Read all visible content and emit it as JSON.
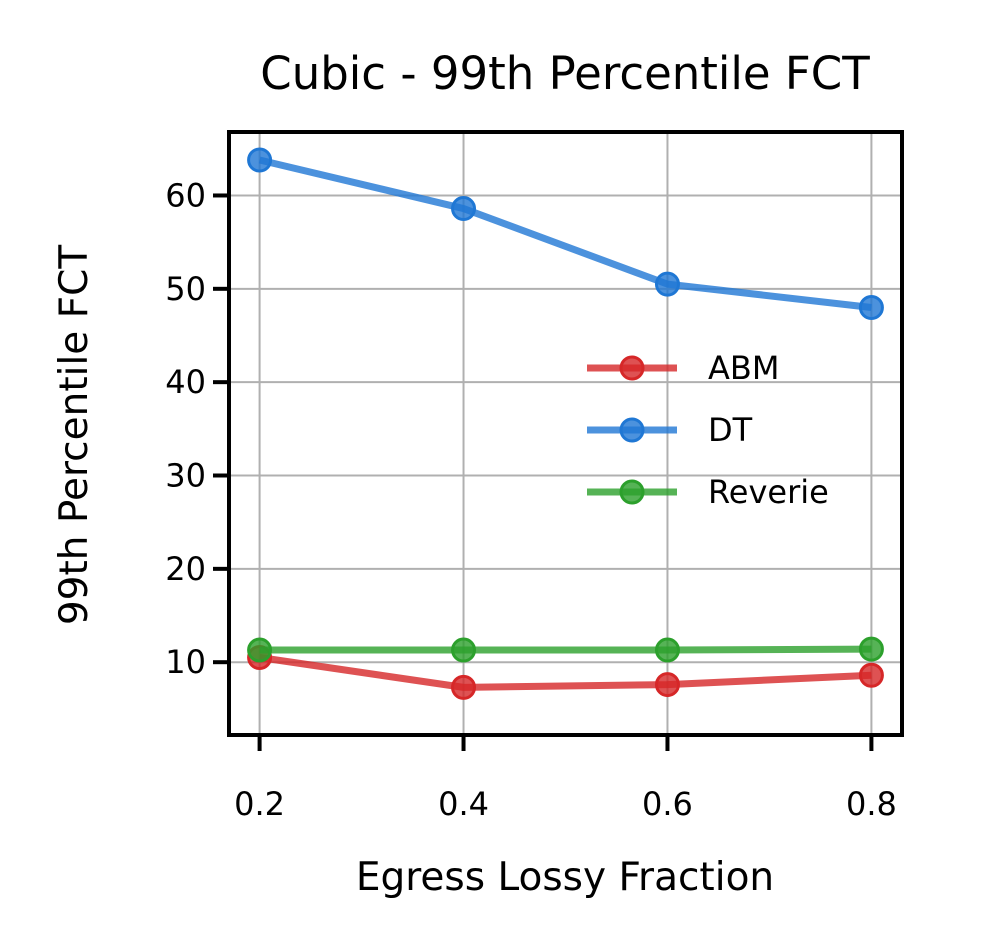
{
  "chart_data": {
    "type": "line",
    "title": "Cubic - 99th Percentile FCT",
    "xlabel": "Egress Lossy Fraction",
    "ylabel": "99th Percentile FCT",
    "x": [
      0.2,
      0.4,
      0.6,
      0.8
    ],
    "x_tick_labels": [
      "0.2",
      "0.4",
      "0.6",
      "0.8"
    ],
    "y_ticks": [
      10,
      20,
      30,
      40,
      50,
      60
    ],
    "y_tick_labels": [
      "10",
      "20",
      "30",
      "40",
      "50",
      "60"
    ],
    "xlim": [
      0.17,
      0.83
    ],
    "ylim": [
      2.2,
      66.8
    ],
    "grid": true,
    "legend_position": "center-right",
    "series": [
      {
        "name": "ABM",
        "color": "#d62728",
        "values": [
          10.5,
          7.3,
          7.6,
          8.6
        ]
      },
      {
        "name": "DT",
        "color": "#1f77d4",
        "values": [
          63.8,
          58.6,
          50.5,
          48.0
        ]
      },
      {
        "name": "Reverie",
        "color": "#2ca02c",
        "values": [
          11.3,
          11.3,
          11.3,
          11.4
        ]
      }
    ]
  }
}
